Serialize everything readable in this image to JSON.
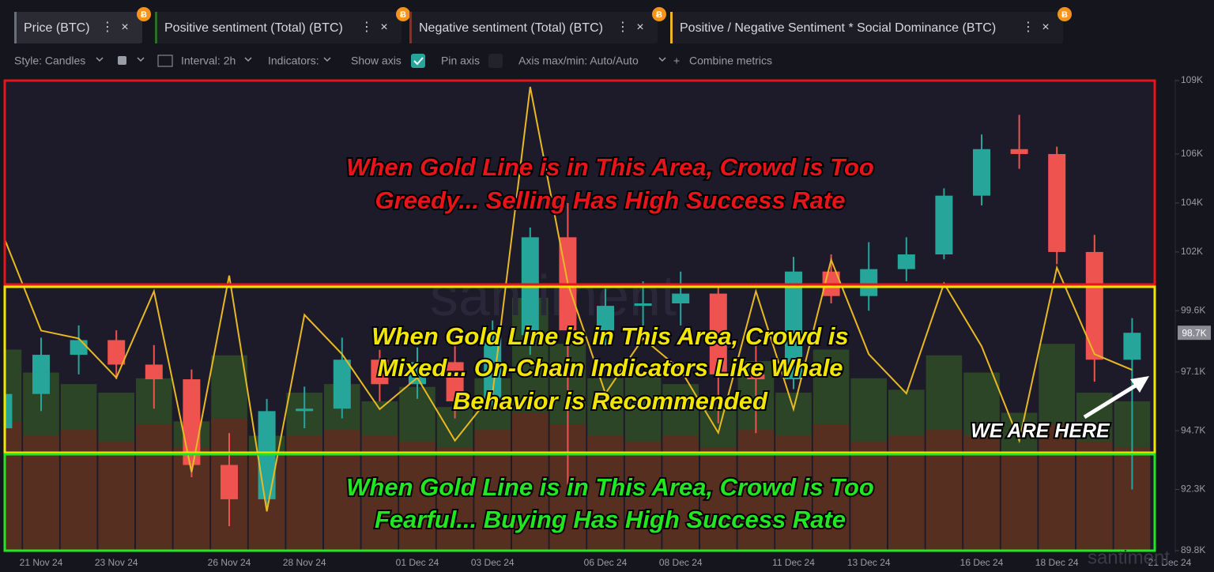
{
  "toolbar": {
    "tabs": [
      {
        "label": "Price (BTC)",
        "color": "#6b6e78"
      },
      {
        "label": "Positive sentiment (Total) (BTC)",
        "color": "#2f6b2a"
      },
      {
        "label": "Negative sentiment (Total) (BTC)",
        "color": "#7a3626"
      },
      {
        "label": "Positive / Negative Sentiment * Social Dominance (BTC)",
        "color": "#e8b923"
      }
    ],
    "controls": [
      "Style: Candles",
      "Interval: 2h",
      "Indicators:",
      "Show axis",
      "Pin axis",
      "Axis max/min: Auto/Auto",
      "Combine metrics"
    ]
  },
  "chart_data": {
    "type": "candlestick",
    "watermark": "santiment",
    "x": [
      "20 Nov 24",
      "21 Nov 24",
      "22 Nov 24",
      "23 Nov 24",
      "24 Nov 24",
      "25 Nov 24",
      "26 Nov 24",
      "27 Nov 24",
      "28 Nov 24",
      "29 Nov 24",
      "30 Nov 24",
      "01 Dec 24",
      "02 Dec 24",
      "03 Dec 24",
      "04 Dec 24",
      "05 Dec 24",
      "06 Dec 24",
      "07 Dec 24",
      "08 Dec 24",
      "09 Dec 24",
      "10 Dec 24",
      "11 Dec 24",
      "12 Dec 24",
      "13 Dec 24",
      "14 Dec 24",
      "15 Dec 24",
      "16 Dec 24",
      "17 Dec 24",
      "18 Dec 24",
      "19 Dec 24",
      "20 Dec 24"
    ],
    "xticks": [
      "21 Nov 24",
      "23 Nov 24",
      "26 Nov 24",
      "28 Nov 24",
      "01 Dec 24",
      "03 Dec 24",
      "06 Dec 24",
      "08 Dec 24",
      "11 Dec 24",
      "13 Dec 24",
      "16 Dec 24",
      "18 Dec 24",
      "21 Dec 24"
    ],
    "open": [
      94800,
      96200,
      97800,
      98400,
      97400,
      96800,
      93300,
      91900,
      95500,
      95600,
      97600,
      96600,
      97500,
      95900,
      98600,
      102600,
      98800,
      99800,
      99900,
      100300,
      97000,
      96800,
      101200,
      100200,
      101300,
      101900,
      104300,
      106200,
      106000,
      102000,
      97600
    ],
    "high": [
      96900,
      98500,
      99000,
      98800,
      98200,
      97200,
      94600,
      96000,
      96500,
      98500,
      98000,
      98100,
      98300,
      99200,
      103000,
      104000,
      100500,
      100800,
      101200,
      100600,
      98300,
      101800,
      101900,
      102400,
      102600,
      104600,
      106800,
      107600,
      106300,
      102700,
      99300
    ],
    "low": [
      94000,
      95500,
      97000,
      96800,
      95600,
      92800,
      90800,
      91400,
      94800,
      95200,
      95900,
      96000,
      95200,
      95600,
      97800,
      92500,
      98200,
      98800,
      99000,
      95000,
      94600,
      96400,
      99900,
      99600,
      100800,
      101700,
      103900,
      105400,
      101500,
      96700,
      92300
    ],
    "close": [
      96200,
      97800,
      98400,
      97400,
      96800,
      93300,
      91900,
      95500,
      95600,
      97600,
      96600,
      97500,
      95900,
      98600,
      102600,
      98800,
      99800,
      99900,
      100300,
      97000,
      96800,
      101200,
      100200,
      101300,
      101900,
      104300,
      106200,
      106000,
      102000,
      97600,
      98700
    ],
    "up_color": "#26a69a",
    "down_color": "#ef5350",
    "series": [
      {
        "name": "Positive sentiment (Total) (BTC)",
        "color": "#2e4a26",
        "values": [
          70,
          62,
          58,
          55,
          60,
          45,
          68,
          40,
          55,
          58,
          52,
          57,
          50,
          60,
          88,
          72,
          60,
          62,
          58,
          50,
          66,
          55,
          70,
          60,
          56,
          68,
          62,
          48,
          72,
          55,
          52
        ]
      },
      {
        "name": "Negative sentiment (Total) (BTC)",
        "color": "#5e2b20",
        "values": [
          45,
          40,
          42,
          38,
          44,
          36,
          46,
          34,
          40,
          42,
          40,
          38,
          36,
          42,
          48,
          44,
          40,
          38,
          40,
          36,
          42,
          40,
          44,
          38,
          40,
          42,
          40,
          34,
          44,
          38,
          36
        ]
      },
      {
        "name": "Positive / Negative Sentiment * Social Dominance (BTC)",
        "color": "#e8b923",
        "values": [
          100,
          70,
          67.5,
          55,
          82.5,
          25,
          87.5,
          12.5,
          75,
          62.5,
          45,
          55,
          35,
          50,
          147.5,
          85,
          50,
          67.5,
          57.5,
          37.5,
          82.5,
          45,
          92.5,
          62.5,
          50,
          85,
          65,
          35,
          90,
          62.5,
          57.5
        ]
      }
    ],
    "ylim": [
      89800,
      109000
    ],
    "yticks": [
      {
        "value": 89800,
        "label": "89.8K"
      },
      {
        "value": 92300,
        "label": "92.3K"
      },
      {
        "value": 94700,
        "label": "94.7K"
      },
      {
        "value": 97100,
        "label": "97.1K"
      },
      {
        "value": 99600,
        "label": "99.6K"
      },
      {
        "value": 102000,
        "label": "102K"
      },
      {
        "value": 104000,
        "label": "104K"
      },
      {
        "value": 106000,
        "label": "106K"
      },
      {
        "value": 109000,
        "label": "109K"
      }
    ],
    "last_price": {
      "value": 98700,
      "label": "98.7K"
    },
    "annotations": [
      {
        "color": "#e8141a",
        "lines": [
          "When Gold Line is in This Area, Crowd is Too",
          "Greedy... Selling Has High Success Rate"
        ]
      },
      {
        "color": "#f2e600",
        "lines": [
          "When Gold Line is in This Area, Crowd is",
          "Mixed... On-Chain Indicators Like Whale",
          "Behavior is Recommended"
        ]
      },
      {
        "color": "#22e622",
        "lines": [
          "When Gold Line is in This Area, Crowd is Too",
          "Fearful... Buying Has High Success Rate"
        ]
      }
    ],
    "marker_text": "WE ARE HERE"
  }
}
